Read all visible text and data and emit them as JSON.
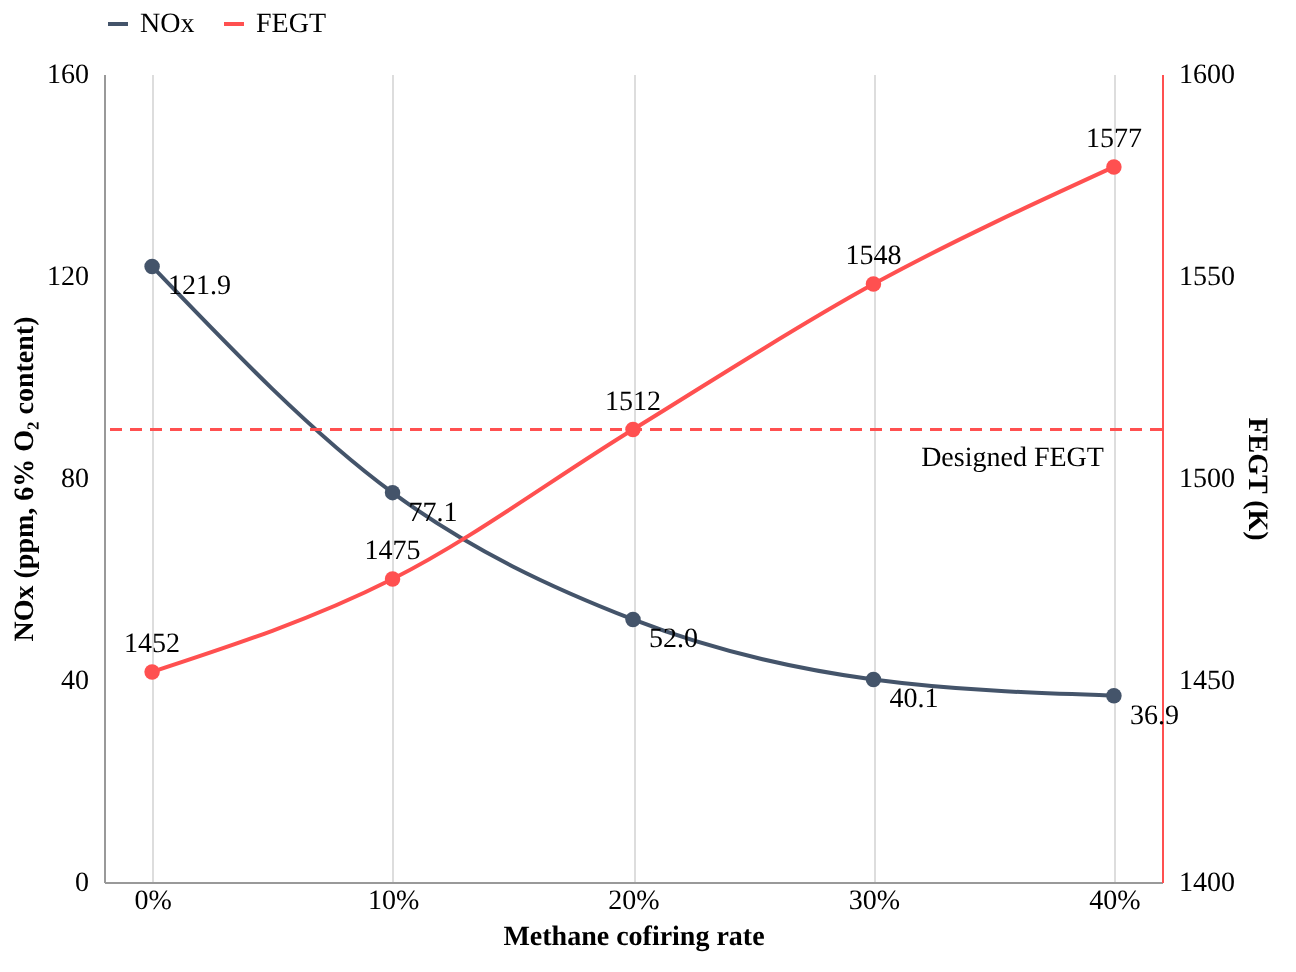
{
  "chart_data": {
    "type": "line",
    "xlabel": "Methane cofiring rate",
    "ylabel": "NOx (ppm, 6% O₂ content)",
    "y2label": "FEGT (K)",
    "categories": [
      "0%",
      "10%",
      "20%",
      "30%",
      "40%"
    ],
    "series": [
      {
        "name": "NOx",
        "color": "#44546a",
        "values": [
          121.9,
          77.1,
          52.0,
          40.1,
          36.9
        ],
        "value_labels": [
          "121.9",
          "77.1",
          "52.0",
          "40.1",
          "36.9"
        ]
      },
      {
        "name": "FEGT",
        "color": "#ff5050",
        "axis": "y2",
        "values": [
          1452,
          1475,
          1512,
          1548,
          1577
        ],
        "value_labels": [
          "1452",
          "1475",
          "1512",
          "1548",
          "1577"
        ]
      }
    ],
    "ylim": [
      0,
      160
    ],
    "yticks": [
      0,
      40,
      80,
      120,
      160
    ],
    "y2lim": [
      1400,
      1600
    ],
    "y2ticks": [
      1400,
      1450,
      1500,
      1550,
      1600
    ],
    "ref_lines": [
      {
        "axis": "y2",
        "value": 1512,
        "label": "Designed FEGT",
        "color": "#ff5050",
        "line_style": "dashed"
      }
    ],
    "grid": "x",
    "legend": "top",
    "marker": "circle",
    "line_style": "solid"
  }
}
